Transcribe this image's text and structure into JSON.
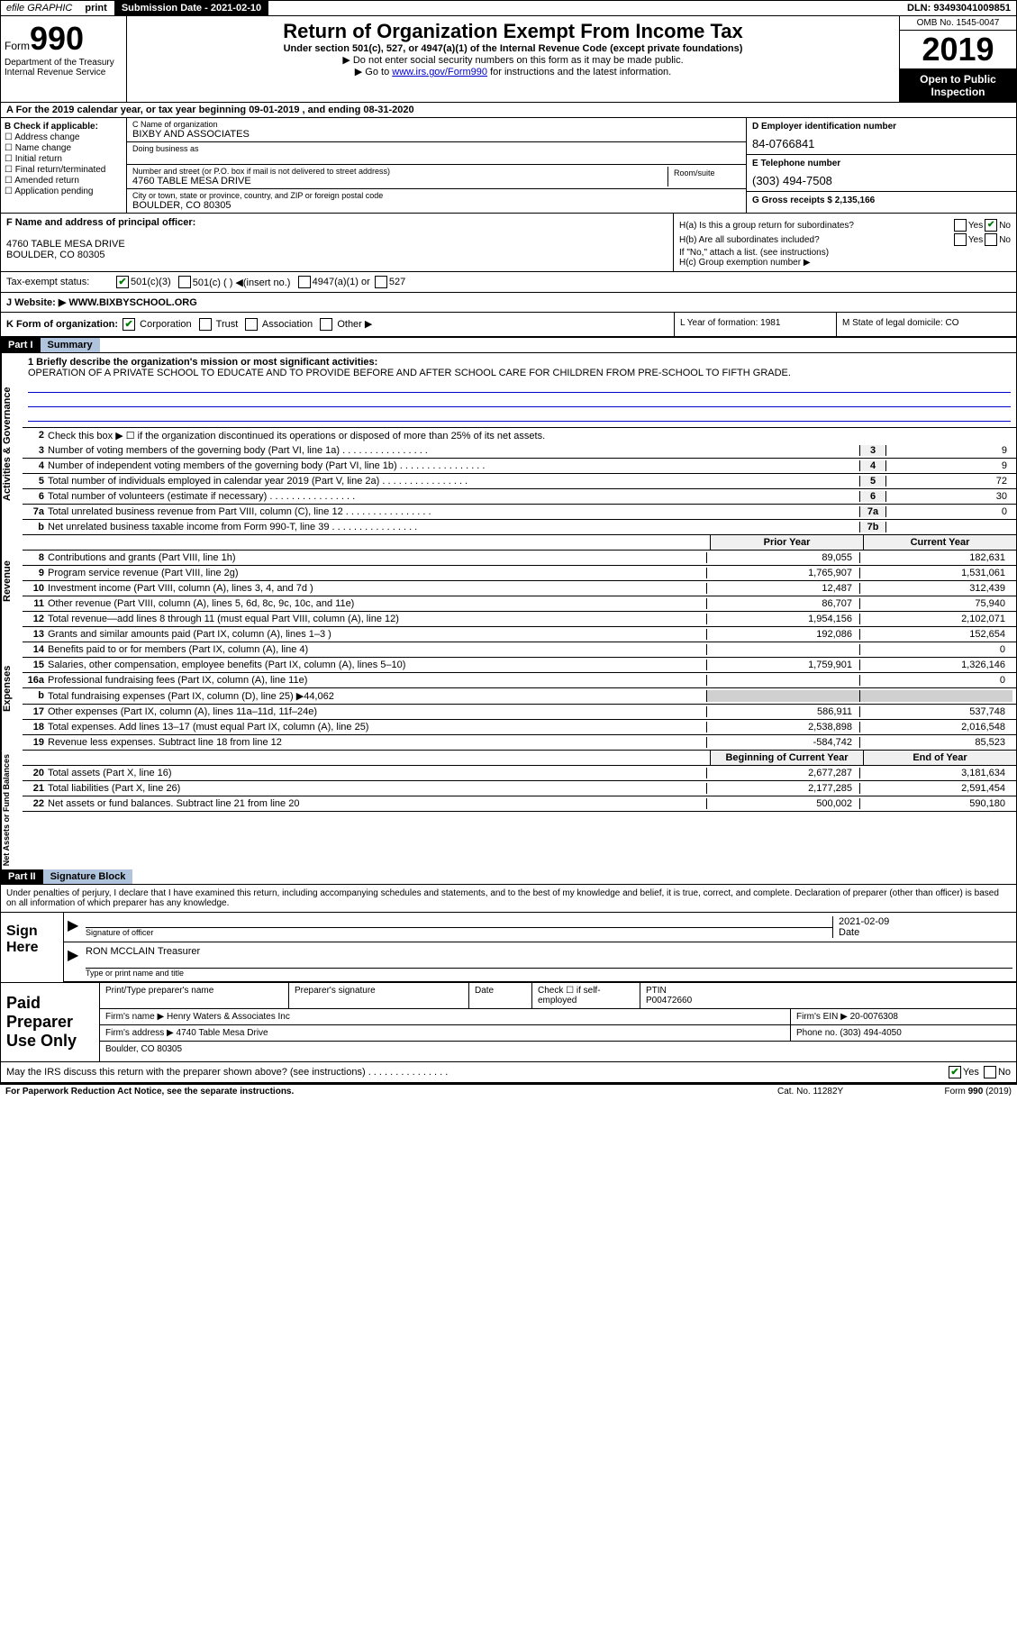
{
  "topbar": {
    "efile": "efile GRAPHIC",
    "print": "print",
    "subdate_lbl": "Submission Date - 2021-02-10",
    "dln": "DLN: 93493041009851"
  },
  "header": {
    "form_prefix": "Form",
    "form_num": "990",
    "dept": "Department of the Treasury Internal Revenue Service",
    "title": "Return of Organization Exempt From Income Tax",
    "sub": "Under section 501(c), 527, or 4947(a)(1) of the Internal Revenue Code (except private foundations)",
    "note1": "▶ Do not enter social security numbers on this form as it may be made public.",
    "note2_pre": "▶ Go to ",
    "note2_link": "www.irs.gov/Form990",
    "note2_post": " for instructions and the latest information.",
    "omb": "OMB No. 1545-0047",
    "year": "2019",
    "inspect": "Open to Public Inspection"
  },
  "row_a": "A For the 2019 calendar year, or tax year beginning 09-01-2019   , and ending 08-31-2020",
  "col_b": {
    "lbl": "B Check if applicable:",
    "opts": [
      "Address change",
      "Name change",
      "Initial return",
      "Final return/terminated",
      "Amended return",
      "Application pending"
    ]
  },
  "col_c": {
    "name_lbl": "C Name of organization",
    "name": "BIXBY AND ASSOCIATES",
    "dba_lbl": "Doing business as",
    "addr_lbl": "Number and street (or P.O. box if mail is not delivered to street address)",
    "addr": "4760 TABLE MESA DRIVE",
    "room_lbl": "Room/suite",
    "city_lbl": "City or town, state or province, country, and ZIP or foreign postal code",
    "city": "BOULDER, CO  80305"
  },
  "col_d": {
    "ein_lbl": "D Employer identification number",
    "ein": "84-0766841",
    "tel_lbl": "E Telephone number",
    "tel": "(303) 494-7508",
    "gross_lbl": "G Gross receipts $ 2,135,166"
  },
  "col_f": {
    "lbl": "F  Name and address of principal officer:",
    "addr1": "4760 TABLE MESA DRIVE",
    "addr2": "BOULDER, CO  80305"
  },
  "col_h": {
    "ha": "H(a)  Is this a group return for subordinates?",
    "hb": "H(b)  Are all subordinates included?",
    "hb_note": "If \"No,\" attach a list. (see instructions)",
    "hc": "H(c)  Group exemption number ▶",
    "yes": "Yes",
    "no": "No"
  },
  "tax_status": {
    "lbl": "Tax-exempt status:",
    "o1": "501(c)(3)",
    "o2": "501(c) (  ) ◀(insert no.)",
    "o3": "4947(a)(1) or",
    "o4": "527"
  },
  "website": {
    "lbl": "J   Website: ▶",
    "val": "WWW.BIXBYSCHOOL.ORG"
  },
  "korg": {
    "lbl": "K Form of organization:",
    "opts": [
      "Corporation",
      "Trust",
      "Association",
      "Other ▶"
    ],
    "l": "L Year of formation: 1981",
    "m": "M State of legal domicile: CO"
  },
  "part1": {
    "hdr": "Part I",
    "title": "Summary"
  },
  "activities": {
    "tab": "Activities & Governance",
    "l1_lbl": "1  Briefly describe the organization's mission or most significant activities:",
    "l1_val": "OPERATION OF A PRIVATE SCHOOL TO EDUCATE AND TO PROVIDE BEFORE AND AFTER SCHOOL CARE FOR CHILDREN FROM PRE-SCHOOL TO FIFTH GRADE.",
    "l2": "Check this box ▶ ☐  if the organization discontinued its operations or disposed of more than 25% of its net assets.",
    "lines": [
      {
        "n": "3",
        "d": "Number of voting members of the governing body (Part VI, line 1a)",
        "c": "3",
        "v": "9"
      },
      {
        "n": "4",
        "d": "Number of independent voting members of the governing body (Part VI, line 1b)",
        "c": "4",
        "v": "9"
      },
      {
        "n": "5",
        "d": "Total number of individuals employed in calendar year 2019 (Part V, line 2a)",
        "c": "5",
        "v": "72"
      },
      {
        "n": "6",
        "d": "Total number of volunteers (estimate if necessary)",
        "c": "6",
        "v": "30"
      },
      {
        "n": "7a",
        "d": "Total unrelated business revenue from Part VIII, column (C), line 12",
        "c": "7a",
        "v": "0"
      },
      {
        "n": "b",
        "d": "Net unrelated business taxable income from Form 990-T, line 39",
        "c": "7b",
        "v": ""
      }
    ]
  },
  "revenue": {
    "tab": "Revenue",
    "py_lbl": "Prior Year",
    "cy_lbl": "Current Year",
    "lines": [
      {
        "n": "8",
        "d": "Contributions and grants (Part VIII, line 1h)",
        "py": "89,055",
        "cy": "182,631"
      },
      {
        "n": "9",
        "d": "Program service revenue (Part VIII, line 2g)",
        "py": "1,765,907",
        "cy": "1,531,061"
      },
      {
        "n": "10",
        "d": "Investment income (Part VIII, column (A), lines 3, 4, and 7d )",
        "py": "12,487",
        "cy": "312,439"
      },
      {
        "n": "11",
        "d": "Other revenue (Part VIII, column (A), lines 5, 6d, 8c, 9c, 10c, and 11e)",
        "py": "86,707",
        "cy": "75,940"
      },
      {
        "n": "12",
        "d": "Total revenue—add lines 8 through 11 (must equal Part VIII, column (A), line 12)",
        "py": "1,954,156",
        "cy": "2,102,071"
      }
    ]
  },
  "expenses": {
    "tab": "Expenses",
    "lines": [
      {
        "n": "13",
        "d": "Grants and similar amounts paid (Part IX, column (A), lines 1–3 )",
        "py": "192,086",
        "cy": "152,654"
      },
      {
        "n": "14",
        "d": "Benefits paid to or for members (Part IX, column (A), line 4)",
        "py": "",
        "cy": "0"
      },
      {
        "n": "15",
        "d": "Salaries, other compensation, employee benefits (Part IX, column (A), lines 5–10)",
        "py": "1,759,901",
        "cy": "1,326,146"
      },
      {
        "n": "16a",
        "d": "Professional fundraising fees (Part IX, column (A), line 11e)",
        "py": "",
        "cy": "0"
      },
      {
        "n": "b",
        "d": "Total fundraising expenses (Part IX, column (D), line 25) ▶44,062",
        "py": "gray",
        "cy": "gray"
      },
      {
        "n": "17",
        "d": "Other expenses (Part IX, column (A), lines 11a–11d, 11f–24e)",
        "py": "586,911",
        "cy": "537,748"
      },
      {
        "n": "18",
        "d": "Total expenses. Add lines 13–17 (must equal Part IX, column (A), line 25)",
        "py": "2,538,898",
        "cy": "2,016,548"
      },
      {
        "n": "19",
        "d": "Revenue less expenses. Subtract line 18 from line 12",
        "py": "-584,742",
        "cy": "85,523"
      }
    ]
  },
  "netassets": {
    "tab": "Net Assets or Fund Balances",
    "by_lbl": "Beginning of Current Year",
    "ey_lbl": "End of Year",
    "lines": [
      {
        "n": "20",
        "d": "Total assets (Part X, line 16)",
        "py": "2,677,287",
        "cy": "3,181,634"
      },
      {
        "n": "21",
        "d": "Total liabilities (Part X, line 26)",
        "py": "2,177,285",
        "cy": "2,591,454"
      },
      {
        "n": "22",
        "d": "Net assets or fund balances. Subtract line 21 from line 20",
        "py": "500,002",
        "cy": "590,180"
      }
    ]
  },
  "part2": {
    "hdr": "Part II",
    "title": "Signature Block"
  },
  "sig": {
    "decl": "Under penalties of perjury, I declare that I have examined this return, including accompanying schedules and statements, and to the best of my knowledge and belief, it is true, correct, and complete. Declaration of preparer (other than officer) is based on all information of which preparer has any knowledge.",
    "sign_here": "Sign Here",
    "sig_officer": "Signature of officer",
    "date_lbl": "Date",
    "date_val": "2021-02-09",
    "name": "RON MCCLAIN Treasurer",
    "name_lbl": "Type or print name and title"
  },
  "prep": {
    "lbl": "Paid Preparer Use Only",
    "h1": "Print/Type preparer's name",
    "h2": "Preparer's signature",
    "h3": "Date",
    "h4_pre": "Check ☐ if self-employed",
    "h5": "PTIN",
    "h5v": "P00472660",
    "firm_lbl": "Firm's name    ▶",
    "firm": "Henry Waters & Associates Inc",
    "ein_lbl": "Firm's EIN ▶",
    "ein": "20-0076308",
    "addr_lbl": "Firm's address ▶",
    "addr1": "4740 Table Mesa Drive",
    "addr2": "Boulder, CO  80305",
    "phone_lbl": "Phone no.",
    "phone": "(303) 494-4050"
  },
  "discuss": "May the IRS discuss this return with the preparer shown above? (see instructions)",
  "footer": {
    "l": "For Paperwork Reduction Act Notice, see the separate instructions.",
    "m": "Cat. No. 11282Y",
    "r": "Form 990 (2019)"
  }
}
